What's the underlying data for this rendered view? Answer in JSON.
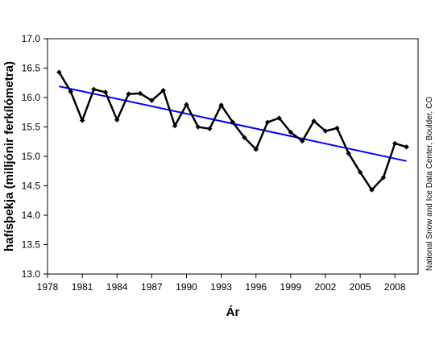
{
  "chart_data": {
    "type": "line",
    "title": "",
    "xlabel": "Ár",
    "ylabel": "hafísþekja (milljónir ferkílómetra)",
    "credit": "National Snow and Ice Data Center, Boulder, CO",
    "xlim": [
      1978,
      2010
    ],
    "ylim": [
      13.0,
      17.0
    ],
    "x_ticks": [
      1978,
      1981,
      1984,
      1987,
      1990,
      1993,
      1996,
      1999,
      2002,
      2005,
      2008
    ],
    "y_ticks": [
      "13.0",
      "13.5",
      "14.0",
      "14.5",
      "15.0",
      "15.5",
      "16.0",
      "16.5",
      "17.0"
    ],
    "grid": false,
    "legend": "none",
    "series": [
      {
        "color": "#000000",
        "marker": "diamond",
        "x": [
          1979,
          1980,
          1981,
          1982,
          1983,
          1984,
          1985,
          1986,
          1987,
          1988,
          1989,
          1990,
          1991,
          1992,
          1993,
          1994,
          1995,
          1996,
          1997,
          1998,
          1999,
          2000,
          2001,
          2002,
          2003,
          2004,
          2005,
          2006,
          2007,
          2008,
          2009
        ],
        "y": [
          16.43,
          16.1,
          15.61,
          16.14,
          16.09,
          15.62,
          16.06,
          16.07,
          15.95,
          16.12,
          15.52,
          15.88,
          15.5,
          15.47,
          15.87,
          15.58,
          15.32,
          15.12,
          15.58,
          15.65,
          15.41,
          15.26,
          15.6,
          15.43,
          15.48,
          15.05,
          14.73,
          14.43,
          14.64,
          15.22,
          15.16
        ]
      },
      {
        "color": "#0000ff",
        "marker": "none",
        "x": [
          1979,
          2009
        ],
        "y": [
          16.19,
          14.92
        ]
      }
    ]
  }
}
